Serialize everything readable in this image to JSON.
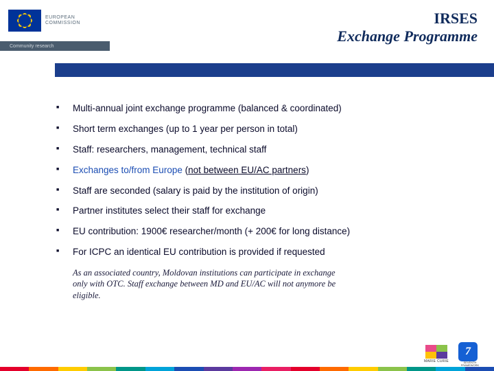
{
  "header": {
    "logo_text_line1": "EUROPEAN",
    "logo_text_line2": "COMMISSION",
    "subtitle": "Community research",
    "title_line1": "IRSES",
    "title_line2": "Exchange Programme"
  },
  "bullets": [
    {
      "text": "Multi-annual joint exchange programme (balanced & coordinated)"
    },
    {
      "text": "Short term exchanges (up to 1 year per person in total)"
    },
    {
      "text": "Staff: researchers, management, technical staff"
    },
    {
      "pre": "Exchanges to/from Europe",
      "paren_open": " (",
      "uline": "not between EU/AC partners",
      "paren_close": ")"
    },
    {
      "text": "Staff are seconded (salary is paid by the institution of origin)"
    },
    {
      "text": "Partner institutes select their staff for exchange"
    },
    {
      "text": "EU contribution: 1900€ researcher/month (+ 200€ for long distance)"
    },
    {
      "text": "For ICPC an identical EU contribution is provided if requested"
    }
  ],
  "note": "As an associated country, Moldovan institutions can participate in exchange only with OTC. Staff exchange between MD and EU/AC will not anymore be eligible.",
  "footer": {
    "mc_label": "MARIE CURIE",
    "fp7_label": "SEVENTH FRAMEWORK PROGRAMME",
    "fp7_num": "7"
  },
  "strip_colors": [
    "#e4002b",
    "#ff6a00",
    "#ffcc00",
    "#8bc34a",
    "#009688",
    "#00a3d9",
    "#1b4db3",
    "#5b3a9e",
    "#9c27b0",
    "#e91e63",
    "#e4002b",
    "#ff6a00",
    "#ffcc00",
    "#8bc34a",
    "#009688",
    "#00a3d9",
    "#1b4db3"
  ]
}
